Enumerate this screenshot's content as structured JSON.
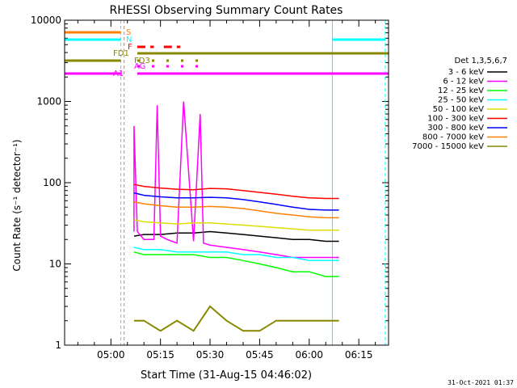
{
  "chart_data": {
    "type": "line",
    "title": "RHESSI Observing Summary Count Rates",
    "xlabel": "Start Time (31-Aug-15 04:46:02)",
    "ylabel": "Count Rate (s⁻¹ detector⁻¹)",
    "yscale": "log",
    "ylim": [
      1,
      10000
    ],
    "xlim": [
      "04:46",
      "06:24"
    ],
    "grid": false,
    "legend_position": "right",
    "legend_title": "Det 1,3,5,6,7",
    "x_ticks": [
      "05:00",
      "05:15",
      "05:30",
      "05:45",
      "06:00",
      "06:15"
    ],
    "y_ticks": [
      "1",
      "10",
      "100",
      "1000",
      "10000"
    ],
    "series": [
      {
        "name": "3 - 6 keV",
        "color": "#000000",
        "x": [
          "05:07",
          "05:10",
          "05:15",
          "05:20",
          "05:25",
          "05:30",
          "05:35",
          "05:40",
          "05:45",
          "05:50",
          "05:55",
          "06:00",
          "06:05",
          "06:09"
        ],
        "values": [
          22,
          23,
          23,
          24,
          24,
          25,
          24,
          23,
          22,
          21,
          20,
          20,
          19,
          19
        ]
      },
      {
        "name": "6 - 12 keV",
        "color": "#ff00ff",
        "x": [
          "05:07",
          "05:07",
          "05:08",
          "05:10",
          "05:13",
          "05:14",
          "05:15",
          "05:17",
          "05:20",
          "05:22",
          "05:25",
          "05:27",
          "05:28",
          "05:30",
          "05:35",
          "05:40",
          "05:45",
          "05:50",
          "05:55",
          "06:00",
          "06:05",
          "06:09"
        ],
        "values": [
          25,
          500,
          25,
          20,
          20,
          900,
          22,
          20,
          18,
          1000,
          19,
          700,
          18,
          17,
          16,
          15,
          14,
          13,
          12,
          12,
          12,
          12
        ]
      },
      {
        "name": "12 - 25 keV",
        "color": "#00ff00",
        "x": [
          "05:07",
          "05:10",
          "05:15",
          "05:20",
          "05:25",
          "05:30",
          "05:35",
          "05:40",
          "05:45",
          "05:50",
          "05:55",
          "06:00",
          "06:05",
          "06:09"
        ],
        "values": [
          14,
          13,
          13,
          13,
          13,
          12,
          12,
          11,
          10,
          9,
          8,
          8,
          7,
          7
        ]
      },
      {
        "name": "25 - 50 keV",
        "color": "#00ffff",
        "x": [
          "05:07",
          "05:10",
          "05:15",
          "05:20",
          "05:25",
          "05:30",
          "05:35",
          "05:40",
          "05:45",
          "05:50",
          "05:55",
          "06:00",
          "06:05",
          "06:09"
        ],
        "values": [
          16,
          15,
          15,
          14,
          14,
          14,
          14,
          13,
          13,
          12,
          12,
          11,
          11,
          11
        ]
      },
      {
        "name": "50 - 100 keV",
        "color": "#dddd00",
        "x": [
          "05:07",
          "05:10",
          "05:15",
          "05:20",
          "05:25",
          "05:30",
          "05:35",
          "05:40",
          "05:45",
          "05:50",
          "05:55",
          "06:00",
          "06:05",
          "06:09"
        ],
        "values": [
          35,
          33,
          32,
          31,
          32,
          32,
          31,
          30,
          29,
          28,
          27,
          26,
          26,
          26
        ]
      },
      {
        "name": "100 - 300 keV",
        "color": "#ff0000",
        "x": [
          "05:07",
          "05:10",
          "05:15",
          "05:20",
          "05:25",
          "05:30",
          "05:35",
          "05:40",
          "05:45",
          "05:50",
          "05:55",
          "06:00",
          "06:05",
          "06:09"
        ],
        "values": [
          95,
          90,
          86,
          83,
          82,
          85,
          84,
          80,
          76,
          72,
          68,
          65,
          64,
          64
        ]
      },
      {
        "name": "300 - 800 keV",
        "color": "#0000ff",
        "x": [
          "05:07",
          "05:10",
          "05:15",
          "05:20",
          "05:25",
          "05:30",
          "05:35",
          "05:40",
          "05:45",
          "05:50",
          "05:55",
          "06:00",
          "06:05",
          "06:09"
        ],
        "values": [
          75,
          70,
          67,
          65,
          65,
          66,
          65,
          62,
          58,
          54,
          50,
          47,
          46,
          46
        ]
      },
      {
        "name": "800 - 7000 keV",
        "color": "#ff8000",
        "x": [
          "05:07",
          "05:10",
          "05:15",
          "05:20",
          "05:25",
          "05:30",
          "05:35",
          "05:40",
          "05:45",
          "05:50",
          "05:55",
          "06:00",
          "06:05",
          "06:09"
        ],
        "values": [
          58,
          55,
          52,
          50,
          50,
          51,
          50,
          48,
          45,
          42,
          40,
          38,
          37,
          37
        ]
      },
      {
        "name": "7000 - 15000 keV",
        "color": "#888800",
        "x": [
          "05:07",
          "05:10",
          "05:15",
          "05:20",
          "05:25",
          "05:30",
          "05:35",
          "05:40",
          "05:45",
          "05:50",
          "05:55",
          "06:00",
          "06:05",
          "06:09"
        ],
        "values": [
          2,
          2,
          1.5,
          2,
          1.5,
          3,
          2,
          1.5,
          1.5,
          2,
          2,
          2,
          2,
          2
        ]
      }
    ],
    "flags": [
      {
        "label": "S",
        "color": "#ff8000",
        "segments": [
          [
            "04:46",
            "05:03"
          ]
        ]
      },
      {
        "label": "N",
        "color": "#00ffff",
        "segments": [
          [
            "04:46",
            "05:03"
          ],
          [
            "06:07",
            "06:23"
          ]
        ]
      },
      {
        "label": "F",
        "color": "#ff0000",
        "segments": [
          [
            "05:08",
            "05:13"
          ],
          [
            "05:16",
            "05:21"
          ]
        ]
      },
      {
        "label": "FD1",
        "color": "#888800",
        "segments": [
          [
            "05:08",
            "06:24"
          ]
        ]
      },
      {
        "label": "FD3",
        "color": "#888800",
        "segments": [
          [
            "04:46",
            "05:03"
          ],
          [
            "05:08",
            "05:28"
          ]
        ]
      },
      {
        "label": "AG",
        "color": "#ff00ff",
        "segments": [
          [
            "05:08",
            "05:28"
          ]
        ]
      },
      {
        "label": "A1",
        "color": "#ff00ff",
        "segments": [
          [
            "04:46",
            "05:03"
          ],
          [
            "05:08",
            "06:24"
          ]
        ]
      }
    ]
  },
  "timestamp": "31-Oct-2021 01:37"
}
